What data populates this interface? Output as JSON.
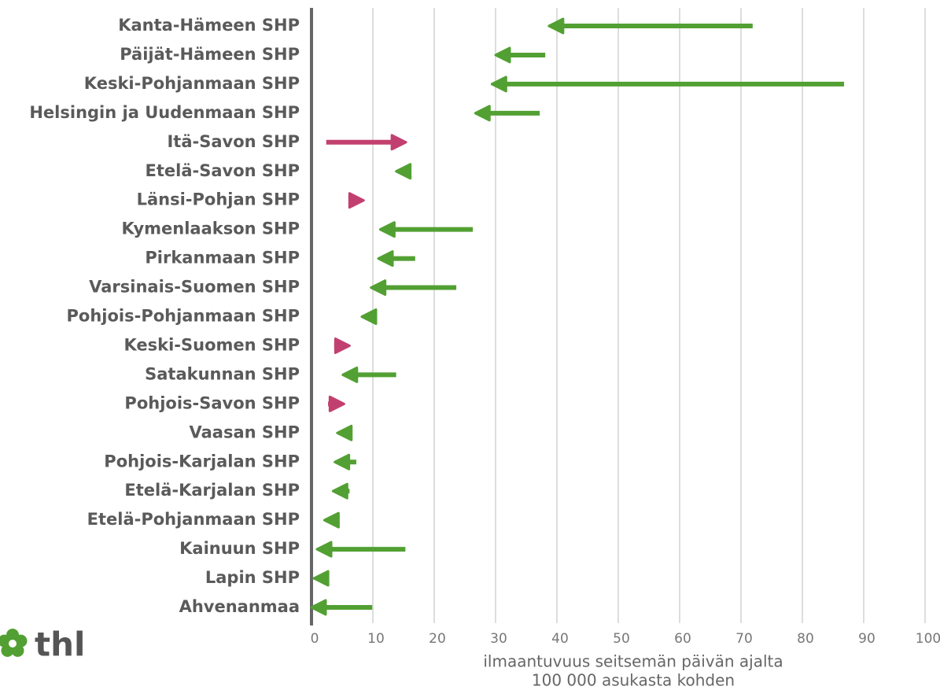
{
  "chart_data": {
    "type": "arrow",
    "categories": [
      "Kanta-Hämeen SHP",
      "Päijät-Hämeen SHP",
      "Keski-Pohjanmaan SHP",
      "Helsingin ja Uudenmaan SHP",
      "Itä-Savon SHP",
      "Etelä-Savon SHP",
      "Länsi-Pohjan SHP",
      "Kymenlaakson SHP",
      "Pirkanmaan SHP",
      "Varsinais-Suomen SHP",
      "Pohjois-Pohjanmaan SHP",
      "Keski-Suomen SHP",
      "Satakunnan SHP",
      "Pohjois-Savon SHP",
      "Vaasan SHP",
      "Pohjois-Karjalan SHP",
      "Etelä-Karjalan SHP",
      "Etelä-Pohjanmaan SHP",
      "Kainuun SHP",
      "Lapin SHP",
      "Ahvenanmaa"
    ],
    "start": [
      71.9,
      38.1,
      86.8,
      37.2,
      2.4,
      16.2,
      6.7,
      26.3,
      16.9,
      23.6,
      10.6,
      3.7,
      13.8,
      2.7,
      6.5,
      7.3,
      6.2,
      4.5,
      15.3,
      2.7,
      9.9
    ],
    "end": [
      38.7,
      30.0,
      29.4,
      26.7,
      15.4,
      13.8,
      8.5,
      11.2,
      10.9,
      9.7,
      8.2,
      6.2,
      5.1,
      5.3,
      4.2,
      3.8,
      3.5,
      2.1,
      0.9,
      0.4,
      0
    ],
    "increase_color": "#c2406f",
    "decrease_color": "#52a033",
    "xlim": [
      0,
      100
    ],
    "xticks": [
      0,
      10,
      20,
      30,
      40,
      50,
      60,
      70,
      80,
      90,
      100
    ],
    "grid": true,
    "xlabel": [
      "ilmaantuvuus seitsemän päivän ajalta",
      "100 000 asukasta kohden"
    ],
    "logo": "thl"
  }
}
